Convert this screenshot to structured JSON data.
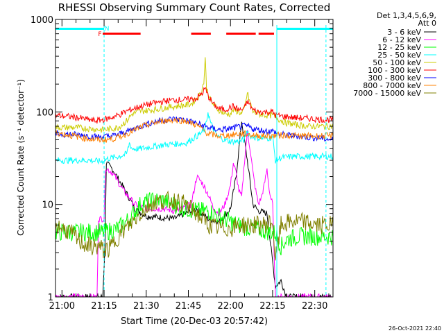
{
  "chart_data": {
    "type": "line",
    "title": "RHESSI Observing Summary Count Rates, Corrected",
    "xlabel": "Start Time (20-Dec-03 20:57:42)",
    "ylabel": "Corrected Count Rate (s⁻¹ detector⁻¹)",
    "yscale": "log",
    "xlim_minutes": [
      -2.3,
      96.5
    ],
    "ylim": [
      1,
      1000
    ],
    "x_ticks": [
      {
        "label": "21:00",
        "minute": 0
      },
      {
        "label": "21:15",
        "minute": 15
      },
      {
        "label": "21:30",
        "minute": 30
      },
      {
        "label": "21:45",
        "minute": 45
      },
      {
        "label": "22:00",
        "minute": 60
      },
      {
        "label": "22:15",
        "minute": 75
      },
      {
        "label": "22:30",
        "minute": 90
      }
    ],
    "y_ticks": [
      {
        "label": "1",
        "value": 1
      },
      {
        "label": "10",
        "value": 10
      },
      {
        "label": "100",
        "value": 100
      },
      {
        "label": "1000",
        "value": 1000
      }
    ],
    "legend_header": [
      "Det 1,3,4,5,6,9,",
      "Att 0"
    ],
    "legend_position": "top-right outside plot",
    "series": [
      {
        "name": "3 - 6 keV",
        "color": "#000000",
        "points": [
          [
            -2.3,
            1.0
          ],
          [
            14.5,
            1.0
          ],
          [
            15.3,
            3.5
          ],
          [
            15.8,
            28
          ],
          [
            18,
            24
          ],
          [
            22,
            15
          ],
          [
            26,
            9
          ],
          [
            30,
            7.5
          ],
          [
            40,
            7
          ],
          [
            44,
            8
          ],
          [
            48,
            9
          ],
          [
            52,
            7
          ],
          [
            56,
            6.5
          ],
          [
            60,
            9
          ],
          [
            62,
            20
          ],
          [
            64,
            80
          ],
          [
            66,
            30
          ],
          [
            68,
            10
          ],
          [
            70,
            8.5
          ],
          [
            73,
            8
          ],
          [
            76,
            1.3
          ],
          [
            78,
            1.5
          ],
          [
            80,
            1.0
          ],
          [
            96.5,
            1.0
          ]
        ]
      },
      {
        "name": "6 - 12 keV",
        "color": "#ff00ff",
        "points": [
          [
            -2.3,
            1.0
          ],
          [
            12.5,
            1.0
          ],
          [
            13,
            7
          ],
          [
            15,
            7
          ],
          [
            15.5,
            25
          ],
          [
            18,
            22
          ],
          [
            22,
            14
          ],
          [
            26,
            10
          ],
          [
            30,
            9
          ],
          [
            36,
            9
          ],
          [
            40,
            8.5
          ],
          [
            43,
            9
          ],
          [
            46,
            10
          ],
          [
            48,
            20
          ],
          [
            50,
            17
          ],
          [
            52,
            13
          ],
          [
            54,
            9
          ],
          [
            56,
            8
          ],
          [
            58,
            10
          ],
          [
            60,
            16
          ],
          [
            61,
            28
          ],
          [
            62,
            22
          ],
          [
            63,
            14
          ],
          [
            64,
            12
          ],
          [
            65,
            30
          ],
          [
            66,
            60
          ],
          [
            67,
            40
          ],
          [
            68,
            22
          ],
          [
            69,
            14
          ],
          [
            70,
            10
          ],
          [
            71,
            12
          ],
          [
            72,
            16
          ],
          [
            73,
            24
          ],
          [
            74,
            13
          ],
          [
            75,
            10
          ],
          [
            76,
            1.0
          ],
          [
            96.5,
            1.0
          ]
        ]
      },
      {
        "name": "12 - 25 keV",
        "color": "#00ff00",
        "points": [
          [
            -2.3,
            5
          ],
          [
            5,
            5
          ],
          [
            10,
            5
          ],
          [
            13,
            5
          ],
          [
            15,
            5
          ],
          [
            20,
            5.5
          ],
          [
            24,
            7
          ],
          [
            28,
            10
          ],
          [
            32,
            11
          ],
          [
            36,
            11
          ],
          [
            40,
            10
          ],
          [
            44,
            9
          ],
          [
            48,
            8.5
          ],
          [
            52,
            8.5
          ],
          [
            56,
            7.5
          ],
          [
            60,
            6.5
          ],
          [
            64,
            5.8
          ],
          [
            68,
            5.5
          ],
          [
            72,
            5.2
          ],
          [
            76,
            4.9
          ],
          [
            78,
            3.5
          ],
          [
            80,
            4.2
          ],
          [
            84,
            4.5
          ],
          [
            90,
            4.5
          ],
          [
            94,
            4.5
          ],
          [
            96.5,
            4.5
          ]
        ]
      },
      {
        "name": "25 - 50 keV",
        "color": "#00ffff",
        "points": [
          [
            -2.3,
            30
          ],
          [
            5,
            30
          ],
          [
            10,
            30
          ],
          [
            14,
            29
          ],
          [
            16,
            31
          ],
          [
            20,
            33
          ],
          [
            23,
            35
          ],
          [
            24,
            46
          ],
          [
            25,
            40
          ],
          [
            28,
            40
          ],
          [
            32,
            42
          ],
          [
            36,
            44
          ],
          [
            40,
            45
          ],
          [
            44,
            46
          ],
          [
            46,
            50
          ],
          [
            48,
            55
          ],
          [
            50,
            60
          ],
          [
            51,
            65
          ],
          [
            52,
            100
          ],
          [
            53,
            75
          ],
          [
            55,
            55
          ],
          [
            58,
            50
          ],
          [
            60,
            48
          ],
          [
            63,
            48
          ],
          [
            65,
            50
          ],
          [
            66,
            63
          ],
          [
            67,
            55
          ],
          [
            70,
            52
          ],
          [
            73,
            52
          ],
          [
            75,
            53
          ],
          [
            76,
            30
          ],
          [
            78,
            32
          ],
          [
            82,
            33
          ],
          [
            86,
            33
          ],
          [
            90,
            33
          ],
          [
            93,
            33
          ],
          [
            96.5,
            33
          ]
        ]
      },
      {
        "name": "50 - 100 keV",
        "color": "#cccc00",
        "points": [
          [
            -2.3,
            68
          ],
          [
            5,
            68
          ],
          [
            10,
            66
          ],
          [
            14,
            64
          ],
          [
            16,
            65
          ],
          [
            18,
            66
          ],
          [
            20,
            68
          ],
          [
            23,
            80
          ],
          [
            25,
            95
          ],
          [
            28,
            102
          ],
          [
            32,
            105
          ],
          [
            36,
            110
          ],
          [
            40,
            115
          ],
          [
            44,
            118
          ],
          [
            46,
            122
          ],
          [
            48,
            140
          ],
          [
            49.5,
            160
          ],
          [
            50.5,
            210
          ],
          [
            51,
            380
          ],
          [
            51.5,
            180
          ],
          [
            53,
            130
          ],
          [
            55,
            110
          ],
          [
            58,
            95
          ],
          [
            60,
            95
          ],
          [
            61,
            105
          ],
          [
            63,
            100
          ],
          [
            64,
            95
          ],
          [
            65,
            110
          ],
          [
            66,
            160
          ],
          [
            67,
            125
          ],
          [
            68,
            100
          ],
          [
            70,
            95
          ],
          [
            73,
            92
          ],
          [
            75,
            92
          ],
          [
            77,
            84
          ],
          [
            80,
            76
          ],
          [
            84,
            72
          ],
          [
            88,
            70
          ],
          [
            92,
            70
          ],
          [
            96.5,
            70
          ]
        ]
      },
      {
        "name": "100 - 300 keV",
        "color": "#ff0000",
        "points": [
          [
            -2.3,
            92
          ],
          [
            4,
            88
          ],
          [
            8,
            84
          ],
          [
            12,
            80
          ],
          [
            14,
            82
          ],
          [
            16,
            84
          ],
          [
            18,
            88
          ],
          [
            20,
            92
          ],
          [
            24,
            105
          ],
          [
            28,
            115
          ],
          [
            32,
            123
          ],
          [
            36,
            130
          ],
          [
            40,
            135
          ],
          [
            44,
            135
          ],
          [
            48,
            140
          ],
          [
            50,
            160
          ],
          [
            51,
            180
          ],
          [
            52,
            150
          ],
          [
            54,
            120
          ],
          [
            56,
            108
          ],
          [
            58,
            106
          ],
          [
            60,
            112
          ],
          [
            61,
            115
          ],
          [
            63,
            105
          ],
          [
            64,
            105
          ],
          [
            65,
            110
          ],
          [
            66,
            130
          ],
          [
            67,
            118
          ],
          [
            68,
            105
          ],
          [
            70,
            100
          ],
          [
            73,
            100
          ],
          [
            75,
            100
          ],
          [
            76,
            92
          ],
          [
            78,
            90
          ],
          [
            81,
            88
          ],
          [
            84,
            86
          ],
          [
            88,
            85
          ],
          [
            92,
            83
          ],
          [
            96.5,
            82
          ]
        ]
      },
      {
        "name": "300 - 800 keV",
        "color": "#0000ff",
        "points": [
          [
            -2.3,
            58
          ],
          [
            4,
            57
          ],
          [
            8,
            56
          ],
          [
            12,
            54
          ],
          [
            15,
            54
          ],
          [
            18,
            55
          ],
          [
            20,
            57
          ],
          [
            24,
            63
          ],
          [
            28,
            70
          ],
          [
            32,
            77
          ],
          [
            36,
            82
          ],
          [
            40,
            84
          ],
          [
            44,
            82
          ],
          [
            48,
            75
          ],
          [
            52,
            68
          ],
          [
            56,
            64
          ],
          [
            60,
            66
          ],
          [
            62,
            68
          ],
          [
            64,
            70
          ],
          [
            66,
            70
          ],
          [
            68,
            66
          ],
          [
            70,
            64
          ],
          [
            73,
            62
          ],
          [
            75,
            62
          ],
          [
            77,
            58
          ],
          [
            80,
            56
          ],
          [
            84,
            55
          ],
          [
            88,
            53
          ],
          [
            92,
            52
          ],
          [
            96.5,
            50
          ]
        ]
      },
      {
        "name": "800 - 7000 keV",
        "color": "#ff8000",
        "points": [
          [
            -2.3,
            60
          ],
          [
            4,
            55
          ],
          [
            8,
            52
          ],
          [
            12,
            50
          ],
          [
            15,
            50
          ],
          [
            18,
            51
          ],
          [
            20,
            53
          ],
          [
            24,
            60
          ],
          [
            28,
            68
          ],
          [
            32,
            75
          ],
          [
            36,
            80
          ],
          [
            40,
            82
          ],
          [
            44,
            80
          ],
          [
            48,
            72
          ],
          [
            50,
            65
          ],
          [
            52,
            58
          ],
          [
            56,
            55
          ],
          [
            60,
            56
          ],
          [
            63,
            58
          ],
          [
            65,
            58
          ],
          [
            66,
            57
          ],
          [
            68,
            56
          ],
          [
            72,
            55
          ],
          [
            75,
            55
          ],
          [
            77,
            56
          ],
          [
            80,
            56
          ],
          [
            84,
            55
          ],
          [
            88,
            55
          ],
          [
            92,
            55
          ],
          [
            96.5,
            55
          ]
        ]
      },
      {
        "name": "7000 - 15000 keV",
        "color": "#808000",
        "points": [
          [
            -2.3,
            6
          ],
          [
            3,
            5
          ],
          [
            6,
            4
          ],
          [
            10,
            3.5
          ],
          [
            13,
            3.5
          ],
          [
            15,
            3.2
          ],
          [
            17,
            3.3
          ],
          [
            20,
            4.5
          ],
          [
            24,
            6
          ],
          [
            28,
            8
          ],
          [
            32,
            10.5
          ],
          [
            36,
            11
          ],
          [
            40,
            11
          ],
          [
            44,
            10
          ],
          [
            48,
            8
          ],
          [
            52,
            6
          ],
          [
            56,
            5.5
          ],
          [
            60,
            5.5
          ],
          [
            64,
            6
          ],
          [
            68,
            6
          ],
          [
            72,
            6
          ],
          [
            75,
            6.5
          ],
          [
            76,
            2.5
          ],
          [
            78,
            6
          ],
          [
            82,
            6.5
          ],
          [
            86,
            6.5
          ],
          [
            90,
            6
          ],
          [
            94,
            6
          ],
          [
            96.5,
            6
          ]
        ]
      }
    ],
    "attenuator_bar": {
      "color": "#00ffff",
      "segments": [
        [
          -2.3,
          15.0
        ],
        [
          76.5,
          96.5
        ]
      ]
    },
    "vertical_markers": [
      {
        "minute": -2.3,
        "color": "#00ffff",
        "style": "solid"
      },
      {
        "minute": 15.0,
        "color": "#00ffff",
        "style": "dashed"
      },
      {
        "minute": 76.5,
        "color": "#00ffff",
        "style": "solid"
      },
      {
        "minute": 94.0,
        "color": "#00ffff",
        "style": "dashed"
      }
    ],
    "flag_annotations": [
      {
        "text": "F",
        "color": "#ff0000",
        "minute": 13.5
      },
      {
        "text": "N",
        "color": "#00ffff",
        "minute": 16.0
      }
    ],
    "flare_bars": {
      "color": "#ff0000",
      "segments": [
        [
          14.5,
          28.0
        ],
        [
          46.0,
          53.0
        ],
        [
          58.5,
          69.0
        ],
        [
          70.0,
          75.5
        ]
      ]
    }
  },
  "footer": {
    "timestamp": "26-Oct-2021 22:40"
  }
}
